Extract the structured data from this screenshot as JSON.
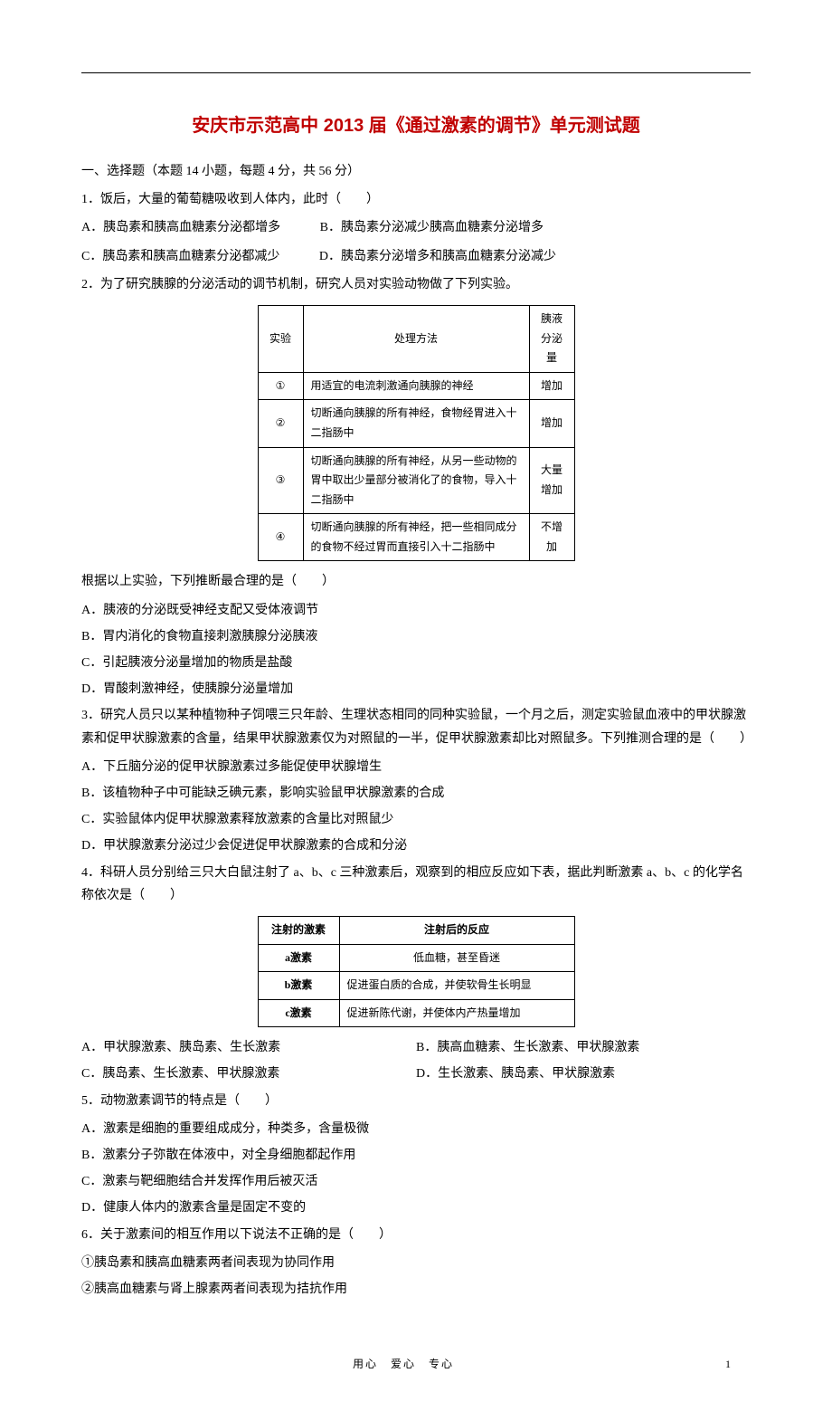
{
  "title": "安庆市示范高中 2013 届《通过激素的调节》单元测试题",
  "section1": "一、选择题（本题 14 小题，每题 4 分，共 56 分）",
  "q1": {
    "stem": "1．饭后，大量的葡萄糖吸收到人体内，此时（　　）",
    "A": "A．胰岛素和胰高血糖素分泌都增多",
    "B": "B．胰岛素分泌减少胰高血糖素分泌增多",
    "C": "C．胰岛素和胰高血糖素分泌都减少",
    "D": "D．胰岛素分泌增多和胰高血糖素分泌减少"
  },
  "q2": {
    "stem": "2．为了研究胰腺的分泌活动的调节机制，研究人员对实验动物做了下列实验。",
    "table": {
      "headers": [
        "实验",
        "处理方法",
        "胰液分泌量"
      ],
      "rows": [
        [
          "①",
          "用适宜的电流刺激通向胰腺的神经",
          "增加"
        ],
        [
          "②",
          "切断通向胰腺的所有神经，食物经胃进入十二指肠中",
          "增加"
        ],
        [
          "③",
          "切断通向胰腺的所有神经，从另一些动物的胃中取出少量部分被消化了的食物，导入十二指肠中",
          "大量增加"
        ],
        [
          "④",
          "切断通向胰腺的所有神经，把一些相同成分的食物不经过胃而直接引入十二指肠中",
          "不增加"
        ]
      ]
    },
    "after": "根据以上实验，下列推断最合理的是（　　）",
    "A": "A．胰液的分泌既受神经支配又受体液调节",
    "B": "B．胃内消化的食物直接刺激胰腺分泌胰液",
    "C": "C．引起胰液分泌量增加的物质是盐酸",
    "D": "D．胃酸刺激神经，使胰腺分泌量增加"
  },
  "q3": {
    "stem": "3．研究人员只以某种植物种子饲喂三只年龄、生理状态相同的同种实验鼠，一个月之后，测定实验鼠血液中的甲状腺激素和促甲状腺激素的含量，结果甲状腺激素仅为对照鼠的一半，促甲状腺激素却比对照鼠多。下列推测合理的是（　　）",
    "A": "A．下丘脑分泌的促甲状腺激素过多能促使甲状腺增生",
    "B": "B．该植物种子中可能缺乏碘元素，影响实验鼠甲状腺激素的合成",
    "C": "C．实验鼠体内促甲状腺激素释放激素的含量比对照鼠少",
    "D": "D．甲状腺激素分泌过少会促进促甲状腺激素的合成和分泌"
  },
  "q4": {
    "stem": "4．科研人员分别给三只大白鼠注射了 a、b、c 三种激素后，观察到的相应反应如下表，据此判断激素 a、b、c 的化学名称依次是（　　）",
    "table": {
      "headers": [
        "注射的激素",
        "注射后的反应"
      ],
      "rows": [
        [
          "a激素",
          "低血糖，甚至昏迷"
        ],
        [
          "b激素",
          "促进蛋白质的合成，并使软骨生长明显"
        ],
        [
          "c激素",
          "促进新陈代谢，并使体内产热量增加"
        ]
      ]
    },
    "A": "A．甲状腺激素、胰岛素、生长激素",
    "B": "B．胰高血糖素、生长激素、甲状腺激素",
    "C": "C．胰岛素、生长激素、甲状腺激素",
    "D": "D．生长激素、胰岛素、甲状腺激素"
  },
  "q5": {
    "stem": "5．动物激素调节的特点是（　　）",
    "A": "A．激素是细胞的重要组成成分，种类多，含量极微",
    "B": "B．激素分子弥散在体液中，对全身细胞都起作用",
    "C": "C．激素与靶细胞结合并发挥作用后被灭活",
    "D": "D．健康人体内的激素含量是固定不变的"
  },
  "q6": {
    "stem": "6．关于激素间的相互作用以下说法不正确的是（　　）",
    "l1": "①胰岛素和胰高血糖素两者间表现为协同作用",
    "l2": "②胰高血糖素与肾上腺素两者间表现为拮抗作用"
  },
  "footer": {
    "text": "用心　爱心　专心",
    "page": "1"
  }
}
